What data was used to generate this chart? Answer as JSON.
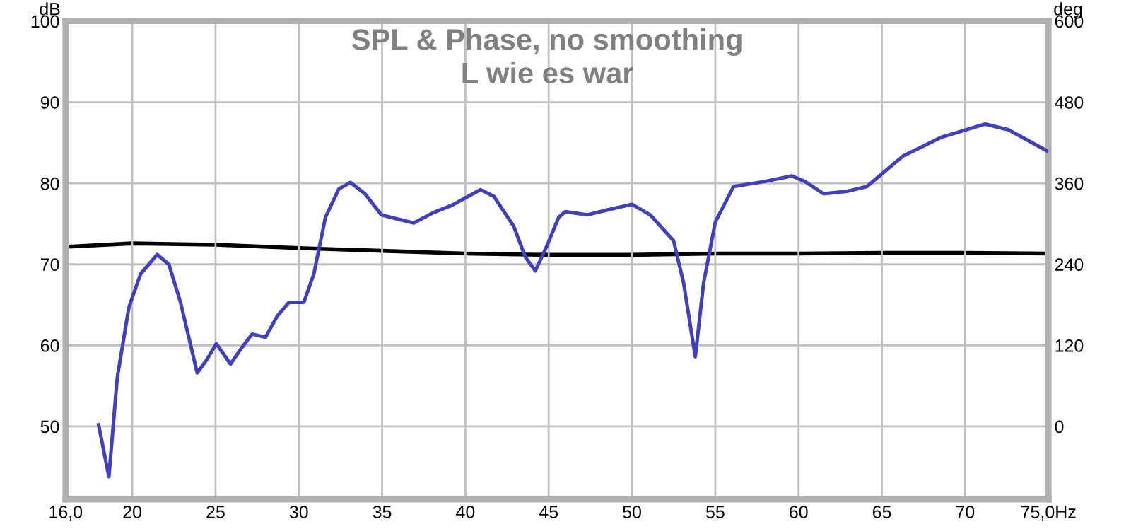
{
  "chart_data": {
    "type": "line",
    "title": "SPL & Phase, no smoothing",
    "subtitle": "L wie es war",
    "ylabel": "dB",
    "y2label": "deg",
    "xlim": [
      16,
      75
    ],
    "xticks": [
      {
        "value": 16,
        "label": "16,0"
      },
      20,
      25,
      30,
      35,
      40,
      45,
      50,
      55,
      60,
      65,
      70,
      {
        "value": 75,
        "label": "75,0Hz"
      }
    ],
    "ylim": [
      41,
      100
    ],
    "yticks": [
      50,
      60,
      70,
      80,
      90,
      100
    ],
    "y2lim": [
      -108,
      600
    ],
    "y2ticks": [
      0,
      120,
      240,
      360,
      480,
      600
    ],
    "grid": true,
    "line_style": "solid",
    "marker": "none",
    "series": [
      {
        "color": "#4040b8",
        "x": [
          17.98,
          18.6,
          19.1,
          19.8,
          20.5,
          21.5,
          22.2,
          22.9,
          23.9,
          24.5,
          25.05,
          25.9,
          26.5,
          27.2,
          28.0,
          28.7,
          29.4,
          30.3,
          30.9,
          31.6,
          32.4,
          33.1,
          33.97,
          34.96,
          36.1,
          36.9,
          38.1,
          39.2,
          40.9,
          41.7,
          42.9,
          43.6,
          44.2,
          44.9,
          45.6,
          46.0,
          47.3,
          48.5,
          50.0,
          51.1,
          52.5,
          53.1,
          53.8,
          54.3,
          55.0,
          56.1,
          57.9,
          59.6,
          60.4,
          61.5,
          62.9,
          64.1,
          66.3,
          68.6,
          71.2,
          72.6,
          75.0
        ],
        "values": [
          50.2,
          43.8,
          56.0,
          64.7,
          68.8,
          71.2,
          70.0,
          65.3,
          56.6,
          58.3,
          60.2,
          57.7,
          59.5,
          61.4,
          61.0,
          63.6,
          65.3,
          65.3,
          68.8,
          75.8,
          79.3,
          80.1,
          78.7,
          76.1,
          75.5,
          75.1,
          76.4,
          77.3,
          79.2,
          78.4,
          74.7,
          70.9,
          69.2,
          72.3,
          75.8,
          76.5,
          76.1,
          76.7,
          77.4,
          76.1,
          72.9,
          67.7,
          58.6,
          67.7,
          75.2,
          79.6,
          80.2,
          80.9,
          80.2,
          78.7,
          79.0,
          79.6,
          83.4,
          85.7,
          87.3,
          86.6,
          83.9
        ]
      },
      {
        "color": "#000000",
        "axis": "y2",
        "x": [
          16,
          20,
          25,
          30,
          35,
          40,
          45,
          50,
          55,
          60,
          65,
          70,
          75
        ],
        "values": [
          266,
          271,
          269,
          264,
          260,
          256,
          254,
          254,
          256,
          256,
          257,
          257,
          256
        ]
      }
    ]
  }
}
